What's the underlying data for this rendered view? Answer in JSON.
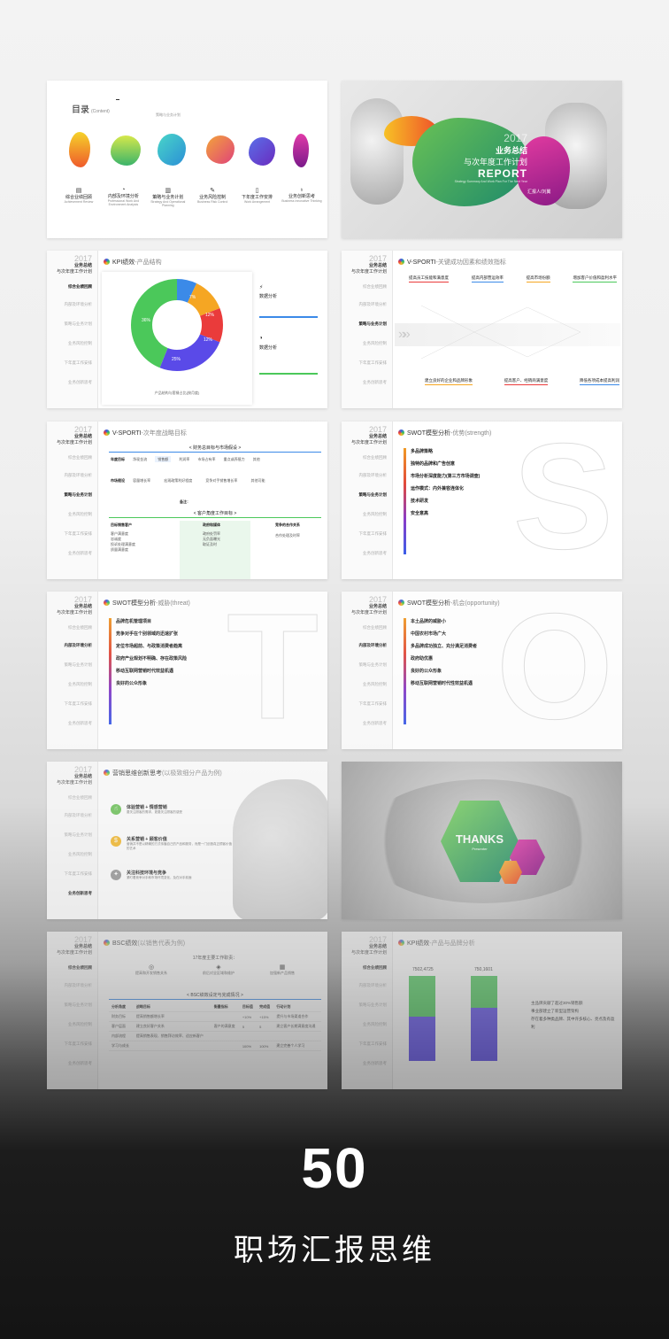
{
  "toc": {
    "title": "目录",
    "title_en": "(Content)",
    "subtitle": "策略与业务计划",
    "items": [
      {
        "label": "综合业绩回顾",
        "en": "Achievement Review"
      },
      {
        "label": "内部及环境分析",
        "en": "Professional Work And Environment Analysis"
      },
      {
        "label": "策略与业务计划",
        "en": "Strategy And Operational Planning"
      },
      {
        "label": "业务风险控制",
        "en": "Business Risk Control"
      },
      {
        "label": "下年度工作安排",
        "en": "Work Arrangement"
      },
      {
        "label": "业务创新思考",
        "en": "Business Innovative Thinking"
      }
    ]
  },
  "cover": {
    "year": "2017",
    "title1": "业务总结",
    "title2": "与次年度工作计划",
    "report": "REPORT",
    "en": "Strategy Summary And Work Plan For The Next Year",
    "presenter": "汇报人/刘翼"
  },
  "sidebar": {
    "year": "2017",
    "t1": "业务总结",
    "t2": "与次年度工作计划",
    "items": [
      "综合业绩回顾",
      "内部及环境分析",
      "策略与业务计划",
      "业务风险控制",
      "下年度工作安排",
      "业务创新思考"
    ]
  },
  "kpi_product": {
    "title": "KPI绩效",
    "subtitle": "-产品结构",
    "caption": "产品结构与套餐占比(按月度)",
    "note1": "数据分析",
    "note2": "数据分析",
    "donut_labels": [
      "7%",
      "12%",
      "12%",
      "25%",
      "36%"
    ]
  },
  "vsporti1": {
    "title": "V-SPORTI",
    "subtitle": "-关键成功因素和绩效指标",
    "top": [
      "提高员工技能和满意度",
      "提高内部营运效率",
      "提高市场份额",
      "增加客户价值和盈利水平"
    ],
    "bottom": [
      "建立良好的企业和品牌形象",
      "提高客户、经销商满意度",
      "降低各项成本提高利润"
    ]
  },
  "vsporti2": {
    "title": "V-SPORTI",
    "subtitle": "-次年度战略目标",
    "box1": "< 财务总目标与市场假设 >",
    "row1_head": "年度目标",
    "row1": [
      "净现金流",
      "销售额",
      "利润率",
      "市场占有率",
      "重点或养殖力",
      "其他"
    ],
    "row2_head": "市场假设",
    "row2": [
      "容量增长率",
      "宏观政策利好程度",
      "竞争对手销售增长率",
      "其他可能"
    ],
    "note": "备注：",
    "box2": "< 客户角度工作目标 >",
    "col_heads": [
      "目标销售客户",
      "政府和媒体",
      "竞争的合作关系"
    ],
    "col1": [
      "客户满意度",
      "忠诚度",
      "投诉处理满意度",
      "质量满意度"
    ],
    "col2": [
      "政府处罚率",
      "无负面曝光",
      "取证及时"
    ],
    "col3": [
      "合作处理及时率"
    ]
  },
  "swot_s": {
    "title": "SWOT模型分析",
    "subtitle": "-优势(strength)",
    "char": "S",
    "items": [
      "多品牌策略",
      "独特的品牌和广告创意",
      "市场分析深度能力(第三方市场调查)",
      "运作模式：内外兼容连体化",
      "技术研发",
      "安全意高"
    ]
  },
  "swot_t": {
    "title": "SWOT模型分析",
    "subtitle": "-威胁(threat)",
    "char": "T",
    "items": [
      "品牌危机管理项目",
      "竞争对手在个别领域的迅速扩张",
      "定位市场超前、与政策消费者趋离",
      "政府产业规划不明确、存在政策风险",
      "移动互联网营销时代效益机遇",
      "良好的公众形象"
    ]
  },
  "swot_o": {
    "title": "SWOT模型分析",
    "subtitle": "-机会(opportunity)",
    "char": "O",
    "items": [
      "本土品牌的威胁小",
      "中国农村市场广大",
      "多品牌成功独立、充分满足消费者",
      "政府助优惠",
      "良好的公众形象",
      "移动互联网营销时代性效益机遇"
    ]
  },
  "marketing": {
    "title": "营销思维创新思考",
    "subtitle": "(以极致细分产品为例)",
    "items": [
      {
        "head": "体验营销 + 情感营销",
        "body": "要关注顾客的需求，更要关注顾客的感受"
      },
      {
        "head": "关系营销 + 顾客价值",
        "body": "营销并不是以精确的方式传播自己的产品和服务，而是一门创造真正顾客价值的艺术"
      },
      {
        "head": "关注科技环境与竞争",
        "body": "紧盯着竞争对手和市场环境变化，及在对手前面"
      }
    ]
  },
  "thanks": {
    "title": "THANKS",
    "sub": "Presenter"
  },
  "bsc": {
    "title": "BSC绩效",
    "subtitle": "(以销售代表为例)",
    "header": "17年度主要工作职责：",
    "icons": [
      "提高和开发销售关系",
      "前后对全区域和维护",
      "加强新产品销售"
    ],
    "box": "< BSC绩效设定与完成情况 >",
    "cols": [
      "分析角度",
      "战略目标",
      "衡量指标",
      "目标值",
      "完成值",
      "行动计划"
    ],
    "rows": [
      [
        "财务目标",
        "提高销售额增长率",
        "",
        "+10%",
        "+15%",
        "提升与市场渠道合作"
      ],
      [
        "客户层面",
        "建立良好客户关系",
        "客户的满意度",
        "5",
        "5",
        "建立客户长期满意度沟通"
      ],
      [
        "内部流程",
        "提高销售表现、销售拜访效率、适应新客户",
        "",
        "",
        "",
        ""
      ],
      [
        "学习与成长",
        "",
        "",
        "100%",
        "100%",
        "建立完善个人学习"
      ]
    ]
  },
  "kpi_brand": {
    "title": "KPI绩效",
    "subtitle": "-产品与品牌分析",
    "v1": "7502,4725",
    "v2": "750,1601",
    "n1": "主品牌贡献了超过30%销售额",
    "n2": "事业部建立了新型运营架构",
    "n3": "存在着多种类品牌、其中许多核心、亮点及有盈利"
  },
  "headline": {
    "number": "50",
    "caption": "职场汇报思维"
  }
}
